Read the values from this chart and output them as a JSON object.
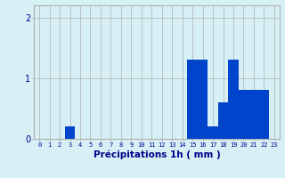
{
  "hours": [
    0,
    1,
    2,
    3,
    4,
    5,
    6,
    7,
    8,
    9,
    10,
    11,
    12,
    13,
    14,
    15,
    16,
    17,
    18,
    19,
    20,
    21,
    22,
    23
  ],
  "values": [
    0,
    0,
    0,
    0.2,
    0,
    0,
    0,
    0,
    0,
    0,
    0,
    0,
    0,
    0,
    0,
    1.3,
    1.3,
    0.2,
    0.6,
    1.3,
    0.8,
    0.8,
    0.8,
    0
  ],
  "bar_color": "#0044cc",
  "background_color": "#d6f0f5",
  "grid_color": "#b0b0b0",
  "xlabel": "Précipitations 1h ( mm )",
  "xlabel_color": "#00008b",
  "tick_color": "#00008b",
  "ylim": [
    0,
    2.2
  ],
  "yticks": [
    0,
    1,
    2
  ],
  "bar_width": 1.0
}
